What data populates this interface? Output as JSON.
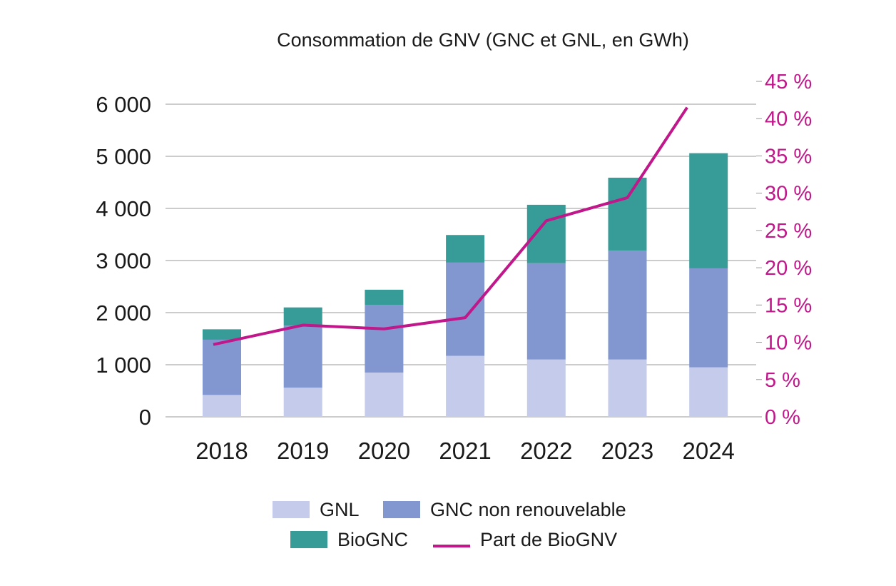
{
  "chart_data": {
    "type": "bar",
    "title": "Consommation de GNV (GNC et GNL, en GWh)",
    "categories": [
      "2018",
      "2019",
      "2020",
      "2021",
      "2022",
      "2023",
      "2024"
    ],
    "series": [
      {
        "name": "GNL",
        "type": "bar",
        "stack": "total",
        "color": "#c5cbeb",
        "values": [
          420,
          560,
          850,
          1170,
          1100,
          1100,
          950
        ]
      },
      {
        "name": "GNC non renouvelable",
        "type": "bar",
        "stack": "total",
        "color": "#8297d0",
        "values": [
          1060,
          1190,
          1300,
          1790,
          1850,
          2090,
          1900
        ]
      },
      {
        "name": "BioGNC",
        "type": "bar",
        "stack": "total",
        "color": "#379c98",
        "values": [
          200,
          350,
          290,
          530,
          1120,
          1400,
          2210
        ]
      },
      {
        "name": "Part de BioGNV",
        "type": "line",
        "axis": "right",
        "color": "#c0178a",
        "values": [
          9.7,
          12.3,
          11.8,
          13.3,
          26.3,
          29.4,
          41.5
        ]
      }
    ],
    "yaxis_left": {
      "range": [
        0,
        6400
      ],
      "ticks": [
        0,
        1000,
        2000,
        3000,
        4000,
        5000,
        6000
      ],
      "tick_labels": [
        "0",
        "1 000",
        "2 000",
        "3 000",
        "4 000",
        "5 000",
        "6 000"
      ]
    },
    "yaxis_right": {
      "range": [
        0,
        45
      ],
      "ticks": [
        0,
        5,
        10,
        15,
        20,
        25,
        30,
        35,
        40,
        45
      ],
      "tick_labels": [
        "0 %",
        "5 %",
        "10 %",
        "15 %",
        "20 %",
        "25 %",
        "30 %",
        "35 %",
        "40 %",
        "45 %"
      ],
      "color": "#c0178a"
    },
    "grid": true,
    "legend": {
      "placement": "bottom",
      "items": [
        {
          "label": "GNL",
          "kind": "box",
          "color": "#c5cbeb"
        },
        {
          "label": "GNC non renouvelable",
          "kind": "box",
          "color": "#8297d0"
        },
        {
          "label": "BioGNC",
          "kind": "box",
          "color": "#379c98"
        },
        {
          "label": "Part de BioGNV",
          "kind": "line",
          "color": "#c0178a"
        }
      ]
    }
  }
}
